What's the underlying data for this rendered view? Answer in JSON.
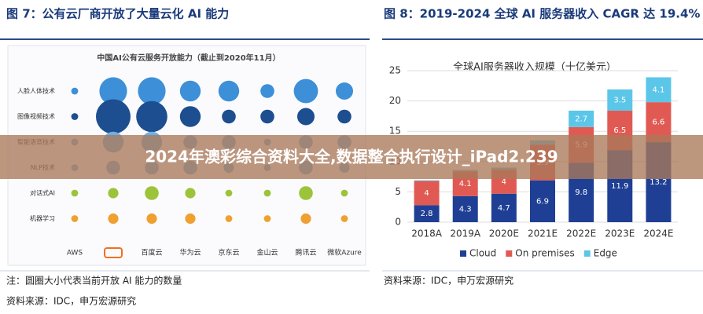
{
  "left": {
    "heading": "图 7：公有云厂商开放了大量云化 AI 能力",
    "note": "注：圆圈大小代表当前开放 AI 能力的数量",
    "source": "资料来源：IDC，申万宏源研究"
  },
  "right": {
    "heading": "图 8：2019-2024 全球 AI 服务器收入 CAGR 达 19.4%",
    "source": "资料来源：IDC，申万宏源研究"
  },
  "banner": "2024年澳彩综合资料大全,数据整合执行设计_iPad2.239",
  "chart_data": [
    {
      "type": "bubble-matrix",
      "title": "中国AI公有云服务开放能力（截止到2020年11月）",
      "categories": [
        "AWS",
        null,
        "百度云",
        "华为云",
        "京东云",
        "金山云",
        "腾讯云",
        "微软Azure"
      ],
      "series": [
        {
          "name": "人脸人体技术",
          "color": "#3d8fd8",
          "values": [
            1,
            4,
            4,
            3,
            3,
            2,
            3.5,
            2.5
          ]
        },
        {
          "name": "图像视频技术",
          "color": "#1d4e8f",
          "values": [
            1,
            5,
            4.5,
            3,
            2,
            2,
            2.5,
            2
          ]
        },
        {
          "name": "智能语音技术",
          "color": "#6fb0e0",
          "values": [
            1,
            3,
            3,
            2,
            2,
            1,
            2,
            2
          ]
        },
        {
          "name": "NLP技术",
          "color": "#6fb0e0",
          "values": [
            1,
            2,
            2,
            2,
            1.5,
            1,
            2,
            1.5
          ]
        },
        {
          "name": "对话式AI",
          "color": "#9cc43a",
          "values": [
            1,
            1.5,
            2,
            1.5,
            1,
            1,
            2,
            1
          ]
        },
        {
          "name": "机器学习",
          "color": "#f0a030",
          "values": [
            1,
            1.5,
            1.5,
            1.5,
            1,
            1,
            1.5,
            1
          ]
        }
      ]
    },
    {
      "type": "stacked-bar",
      "title": "全球AI服务器收入规模（十亿美元）",
      "categories": [
        "2018A",
        "2019A",
        "2020E",
        "2021E",
        "2022E",
        "2023E",
        "2024E"
      ],
      "series": [
        {
          "name": "Cloud",
          "color": "#1f3f94",
          "values": [
            2.8,
            4.3,
            4.7,
            6.9,
            9.8,
            11.9,
            13.2
          ]
        },
        {
          "name": "On premises",
          "color": "#e05a53",
          "values": [
            4.0,
            4.1,
            4.0,
            5.9,
            5.9,
            6.5,
            6.6
          ]
        },
        {
          "name": "Edge",
          "color": "#5bc6e8",
          "values": [
            0.1,
            0.2,
            0.3,
            0.7,
            2.7,
            3.5,
            4.1
          ]
        }
      ],
      "ylim": [
        0,
        25
      ],
      "yticks": [
        0,
        5,
        10,
        15,
        20,
        25
      ],
      "grid": true
    }
  ]
}
